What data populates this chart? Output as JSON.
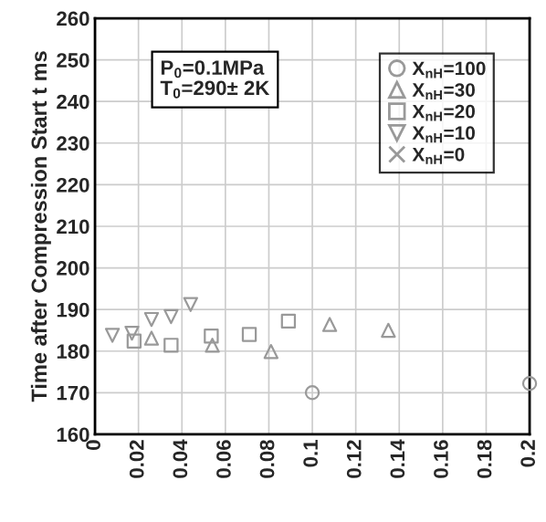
{
  "chart_data": {
    "type": "scatter",
    "ylabel": "Time after Compression Start t ms",
    "xlim": [
      0,
      0.2
    ],
    "xticks": [
      0,
      0.02,
      0.04,
      0.06,
      0.08,
      0.1,
      0.12,
      0.14,
      0.16,
      0.18,
      0.2
    ],
    "ylim": [
      160,
      260
    ],
    "yticks": [
      160,
      170,
      180,
      190,
      200,
      210,
      220,
      230,
      240,
      250,
      260
    ],
    "grid": true,
    "legend": "top right",
    "annotations": [
      "P$_{0}$=0.1MPa\nT$_{0}$=290± 2K"
    ],
    "series": [
      {
        "name": "X$_{nH}$=100",
        "color": "#999999",
        "marker": "circle",
        "x": [
          0.1,
          0.2
        ],
        "values": [
          170,
          172.2
        ]
      },
      {
        "name": "X$_{nH}$=30",
        "color": "#999999",
        "marker": "triangle",
        "x": [
          0.026,
          0.054,
          0.081,
          0.108,
          0.135
        ],
        "values": [
          183.1,
          181.4,
          179.9,
          186.4,
          185
        ]
      },
      {
        "name": "X$_{nH}$=20",
        "color": "#999999",
        "marker": "square",
        "x": [
          0.018,
          0.035,
          0.0535,
          0.071,
          0.089
        ],
        "values": [
          182.4,
          181.4,
          183.6,
          184,
          187.2
        ]
      },
      {
        "name": "X$_{nH}$=10",
        "color": "#999999",
        "marker": "triangle_down",
        "x": [
          0.008,
          0.017,
          0.026,
          0.035,
          0.044
        ],
        "values": [
          183.8,
          184.3,
          187.6,
          188.3,
          191.2
        ]
      },
      {
        "name": "X$_{nH}$=0",
        "color": "#999999",
        "marker": "cross"
      }
    ]
  }
}
